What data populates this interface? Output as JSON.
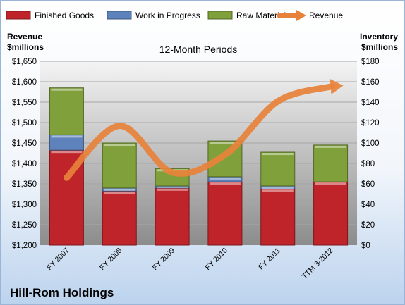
{
  "company": "Hill-Rom Holdings",
  "chart_data": {
    "type": "bar",
    "subtitle": "12-Month Periods",
    "left_axis": {
      "label_line1": "Revenue",
      "label_line2": "$millions",
      "min": 1200,
      "max": 1650,
      "step": 50,
      "tick_labels": [
        "$1,200",
        "$1,250",
        "$1,300",
        "$1,350",
        "$1,400",
        "$1,450",
        "$1,500",
        "$1,550",
        "$1,600",
        "$1,650"
      ]
    },
    "right_axis": {
      "label_line1": "Inventory",
      "label_line2": "$millions",
      "min": 0,
      "max": 180,
      "step": 20,
      "tick_labels": [
        "$0",
        "$20",
        "$40",
        "$60",
        "$80",
        "$100",
        "$120",
        "$140",
        "$160",
        "$180"
      ]
    },
    "categories": [
      "FY 2007",
      "FY 2008",
      "FY 2009",
      "FY 2010",
      "FY 2011",
      "TTM 3-2012"
    ],
    "stacked_series": [
      {
        "name": "Finished Goods",
        "axis": "right",
        "color": "#C0242B",
        "values": [
          93,
          53,
          56,
          62,
          55,
          62
        ]
      },
      {
        "name": "Work in Progress",
        "axis": "right",
        "color": "#5E82BC",
        "values": [
          15,
          3,
          2,
          5,
          3,
          0
        ]
      },
      {
        "name": "Raw Materials",
        "axis": "right",
        "color": "#7FA03A",
        "values": [
          46,
          44,
          17,
          35,
          33,
          36
        ]
      }
    ],
    "line_series": {
      "name": "Revenue",
      "axis": "left",
      "color": "#E8823A",
      "values": [
        1365,
        1492,
        1378,
        1421,
        1552,
        1588
      ]
    },
    "legend_position": "top",
    "grid": true
  }
}
